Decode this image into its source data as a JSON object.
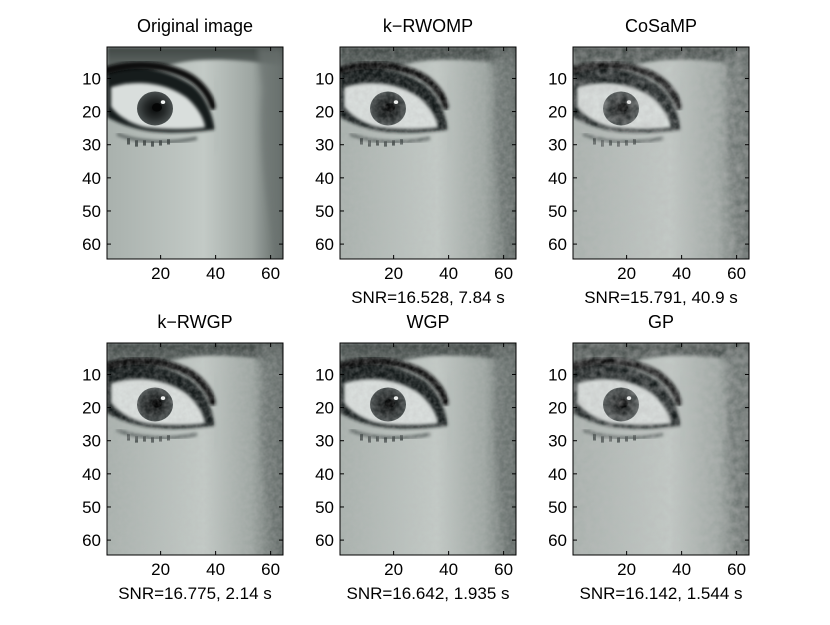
{
  "chart_data": [
    {
      "type": "heatmap",
      "colormap": "gray",
      "title": "Original image",
      "xlabel": "",
      "ylabel": "",
      "xlim": [
        0.5,
        64.5
      ],
      "ylim": [
        0.5,
        64.5
      ],
      "y_reversed": true,
      "x_ticks": [
        20,
        40,
        60
      ],
      "y_ticks": [
        10,
        20,
        30,
        40,
        50,
        60
      ],
      "caption": ""
    },
    {
      "type": "heatmap",
      "colormap": "gray",
      "title": "k−RWOMP",
      "xlabel": "",
      "ylabel": "",
      "xlim": [
        0.5,
        64.5
      ],
      "ylim": [
        0.5,
        64.5
      ],
      "y_reversed": true,
      "x_ticks": [
        20,
        40,
        60
      ],
      "y_ticks": [
        10,
        20,
        30,
        40,
        50,
        60
      ],
      "caption": "SNR=16.528, 7.84 s",
      "snr": 16.528,
      "time_s": 7.84
    },
    {
      "type": "heatmap",
      "colormap": "gray",
      "title": "CoSaMP",
      "xlabel": "",
      "ylabel": "",
      "xlim": [
        0.5,
        64.5
      ],
      "ylim": [
        0.5,
        64.5
      ],
      "y_reversed": true,
      "x_ticks": [
        20,
        40,
        60
      ],
      "y_ticks": [
        10,
        20,
        30,
        40,
        50,
        60
      ],
      "caption": "SNR=15.791, 40.9 s",
      "snr": 15.791,
      "time_s": 40.9
    },
    {
      "type": "heatmap",
      "colormap": "gray",
      "title": "k−RWGP",
      "xlabel": "",
      "ylabel": "",
      "xlim": [
        0.5,
        64.5
      ],
      "ylim": [
        0.5,
        64.5
      ],
      "y_reversed": true,
      "x_ticks": [
        20,
        40,
        60
      ],
      "y_ticks": [
        10,
        20,
        30,
        40,
        50,
        60
      ],
      "caption": "SNR=16.775, 2.14 s",
      "snr": 16.775,
      "time_s": 2.14
    },
    {
      "type": "heatmap",
      "colormap": "gray",
      "title": "WGP",
      "xlabel": "",
      "ylabel": "",
      "xlim": [
        0.5,
        64.5
      ],
      "ylim": [
        0.5,
        64.5
      ],
      "y_reversed": true,
      "x_ticks": [
        20,
        40,
        60
      ],
      "y_ticks": [
        10,
        20,
        30,
        40,
        50,
        60
      ],
      "caption": "SNR=16.642, 1.935 s",
      "snr": 16.642,
      "time_s": 1.935
    },
    {
      "type": "heatmap",
      "colormap": "gray",
      "title": "GP",
      "xlabel": "",
      "ylabel": "",
      "xlim": [
        0.5,
        64.5
      ],
      "ylim": [
        0.5,
        64.5
      ],
      "y_reversed": true,
      "x_ticks": [
        20,
        40,
        60
      ],
      "y_ticks": [
        10,
        20,
        30,
        40,
        50,
        60
      ],
      "caption": "SNR=16.142, 1.544 s",
      "snr": 16.142,
      "time_s": 1.544
    }
  ]
}
